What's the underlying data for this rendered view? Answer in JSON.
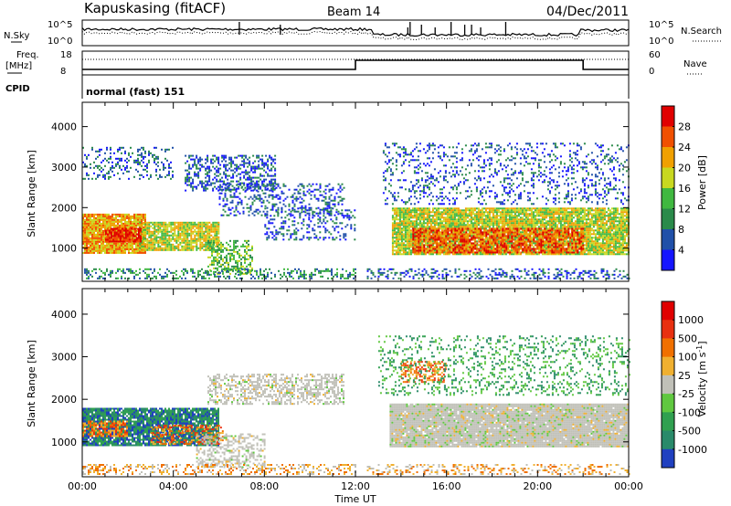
{
  "header": {
    "station": "Kapuskasing (fitACF)",
    "beam": "Beam 14",
    "date": "04/Dec/2011"
  },
  "sky_panel": {
    "left_label": "N.Sky",
    "right_label": "N.Search",
    "left_ticks": [
      "10^5",
      "10^0"
    ],
    "right_ticks": [
      "10^5",
      "10^0"
    ]
  },
  "freq_panel": {
    "left_label_1": "Freq.",
    "left_label_2": "[MHz]",
    "right_label": "Nave",
    "left_ticks": [
      "18",
      "8"
    ],
    "right_ticks": [
      "60",
      "0"
    ],
    "freq_steps": [
      {
        "start_h": 0,
        "end_h": 12,
        "value_mhz": 9.5
      },
      {
        "start_h": 12,
        "end_h": 22,
        "value_mhz": 14.5
      },
      {
        "start_h": 22,
        "end_h": 24,
        "value_mhz": 9.5
      }
    ],
    "nave_level": 42
  },
  "cpid_panel": {
    "label": "CPID",
    "value": "normal (fast) 151"
  },
  "chart_data": [
    {
      "type": "heatmap",
      "name": "power",
      "ylabel": "Slant Range [km]",
      "xlabel": "Time UT",
      "x_range_hours": [
        0,
        24
      ],
      "y_range_km": [
        180,
        4600
      ],
      "yticks": [
        "1000",
        "2000",
        "3000",
        "4000"
      ],
      "xticks": [
        "00:00",
        "04:00",
        "08:00",
        "12:00",
        "16:00",
        "20:00",
        "00:00"
      ],
      "colorbar": {
        "label": "Power [dB]",
        "ticks": [
          "4",
          "8",
          "12",
          "16",
          "20",
          "24",
          "28"
        ],
        "colors": [
          "#1515ff",
          "#2050a8",
          "#2a8a4a",
          "#40b840",
          "#c8d820",
          "#f0a000",
          "#f05000",
          "#e00000"
        ]
      }
    },
    {
      "type": "heatmap",
      "name": "velocity",
      "ylabel": "Slant Range [km]",
      "xlabel": "Time UT",
      "x_range_hours": [
        0,
        24
      ],
      "y_range_km": [
        180,
        4600
      ],
      "yticks": [
        "1000",
        "2000",
        "3000",
        "4000"
      ],
      "xticks": [
        "00:00",
        "04:00",
        "08:00",
        "12:00",
        "16:00",
        "20:00",
        "00:00"
      ],
      "colorbar": {
        "label": "Velocity [m s",
        "label_sup": "-1",
        "label_end": "]",
        "ticks": [
          "1000",
          "500",
          "100",
          "25",
          "-25",
          "-100",
          "-500",
          "-1000"
        ],
        "colors": [
          "#2040c0",
          "#2a8a6a",
          "#30a050",
          "#60c840",
          "#c0c0b8",
          "#f0b030",
          "#f07000",
          "#e83010",
          "#e00000"
        ]
      }
    }
  ],
  "echo_regions": {
    "power": [
      {
        "h0": 0.0,
        "h1": 2.8,
        "k0": 900,
        "k1": 1850,
        "level": 5,
        "dens": 0.95
      },
      {
        "h0": 2.5,
        "h1": 6.0,
        "k0": 950,
        "k1": 1650,
        "level": 4,
        "dens": 0.85
      },
      {
        "h0": 1.0,
        "h1": 2.6,
        "k0": 1150,
        "k1": 1500,
        "level": 7,
        "dens": 0.8
      },
      {
        "h0": 0.0,
        "h1": 4.0,
        "k0": 2700,
        "k1": 3500,
        "level": 1,
        "dens": 0.25
      },
      {
        "h0": 4.5,
        "h1": 8.5,
        "k0": 2400,
        "k1": 3300,
        "level": 1,
        "dens": 0.45
      },
      {
        "h0": 5.5,
        "h1": 7.5,
        "k0": 350,
        "k1": 1200,
        "level": 3,
        "dens": 0.5
      },
      {
        "h0": 6.0,
        "h1": 11.5,
        "k0": 1800,
        "k1": 2600,
        "level": 1,
        "dens": 0.3
      },
      {
        "h0": 8.0,
        "h1": 12.0,
        "k0": 1200,
        "k1": 2000,
        "level": 1,
        "dens": 0.25
      },
      {
        "h0": 0.0,
        "h1": 12.0,
        "k0": 250,
        "k1": 500,
        "level": 2,
        "dens": 0.35
      },
      {
        "h0": 13.6,
        "h1": 24.0,
        "k0": 850,
        "k1": 2000,
        "level": 4,
        "dens": 0.9
      },
      {
        "h0": 14.5,
        "h1": 22.0,
        "k0": 900,
        "k1": 1500,
        "level": 6,
        "dens": 0.7
      },
      {
        "h0": 13.2,
        "h1": 24.0,
        "k0": 2100,
        "k1": 3600,
        "level": 1,
        "dens": 0.2
      },
      {
        "h0": 12.5,
        "h1": 24.0,
        "k0": 250,
        "k1": 500,
        "level": 1,
        "dens": 0.3
      }
    ],
    "velocity": [
      {
        "h0": 0.0,
        "h1": 6.0,
        "k0": 900,
        "k1": 1800,
        "level": 1,
        "dens": 0.9
      },
      {
        "h0": 0.0,
        "h1": 2.0,
        "k0": 1150,
        "k1": 1500,
        "level": 6,
        "dens": 0.6
      },
      {
        "h0": 3.0,
        "h1": 6.2,
        "k0": 950,
        "k1": 1400,
        "level": 6,
        "dens": 0.45
      },
      {
        "h0": 5.5,
        "h1": 11.5,
        "k0": 1900,
        "k1": 2600,
        "level": 4,
        "dens": 0.5
      },
      {
        "h0": 5.0,
        "h1": 8.0,
        "k0": 400,
        "k1": 1200,
        "level": 4,
        "dens": 0.45
      },
      {
        "h0": 0.0,
        "h1": 12.0,
        "k0": 250,
        "k1": 480,
        "level": 5,
        "dens": 0.35
      },
      {
        "h0": 13.5,
        "h1": 24.0,
        "k0": 900,
        "k1": 1900,
        "level": 4,
        "dens": 0.95
      },
      {
        "h0": 14.0,
        "h1": 16.0,
        "k0": 2400,
        "k1": 2900,
        "level": 6,
        "dens": 0.5
      },
      {
        "h0": 13.0,
        "h1": 24.0,
        "k0": 2100,
        "k1": 3500,
        "level": 2,
        "dens": 0.2
      },
      {
        "h0": 12.5,
        "h1": 24.0,
        "k0": 250,
        "k1": 480,
        "level": 5,
        "dens": 0.3
      }
    ]
  }
}
